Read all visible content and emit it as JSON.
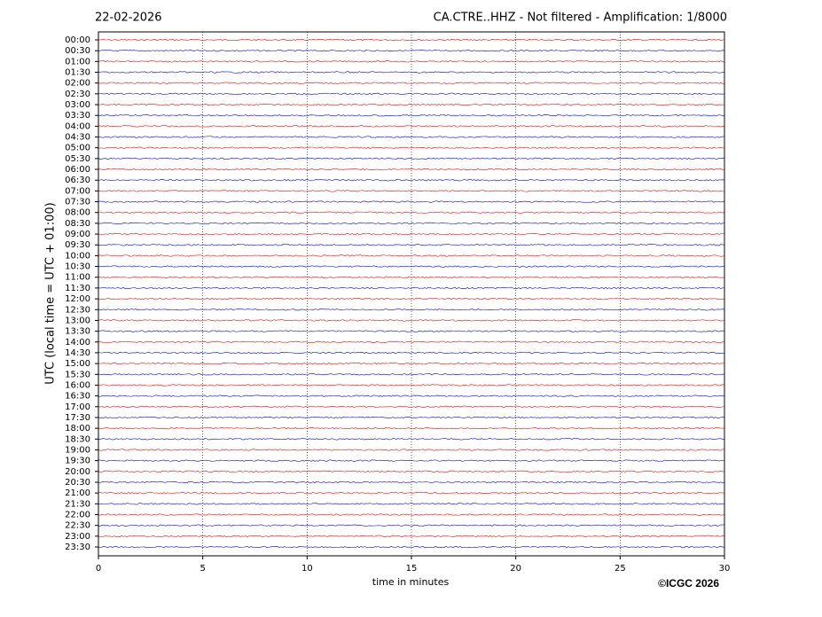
{
  "chart_data": {
    "type": "helicorder",
    "date": "22-02-2026",
    "title": "CA.CTRE..HHZ - Not filtered - Amplification: 1/8000",
    "xlabel": "time in minutes",
    "ylabel": "UTC (local time = UTC + 01:00)",
    "credit": "©ICGC 2026",
    "categories": [
      "00:00",
      "00:30",
      "01:00",
      "01:30",
      "02:00",
      "02:30",
      "03:00",
      "03:30",
      "04:00",
      "04:30",
      "05:00",
      "05:30",
      "06:00",
      "06:30",
      "07:00",
      "07:30",
      "08:00",
      "08:30",
      "09:00",
      "09:30",
      "10:00",
      "10:30",
      "11:00",
      "11:30",
      "12:00",
      "12:30",
      "13:00",
      "13:30",
      "14:00",
      "14:30",
      "15:00",
      "15:30",
      "16:00",
      "16:30",
      "17:00",
      "17:30",
      "18:00",
      "18:30",
      "19:00",
      "19:30",
      "20:00",
      "20:30",
      "21:00",
      "21:30",
      "22:00",
      "22:30",
      "23:00",
      "23:30"
    ],
    "colors": [
      "#ff0000",
      "#0000ff"
    ],
    "xlim": [
      0,
      30
    ],
    "xticks": [
      0,
      5,
      10,
      15,
      20,
      25,
      30
    ],
    "grid": true
  }
}
